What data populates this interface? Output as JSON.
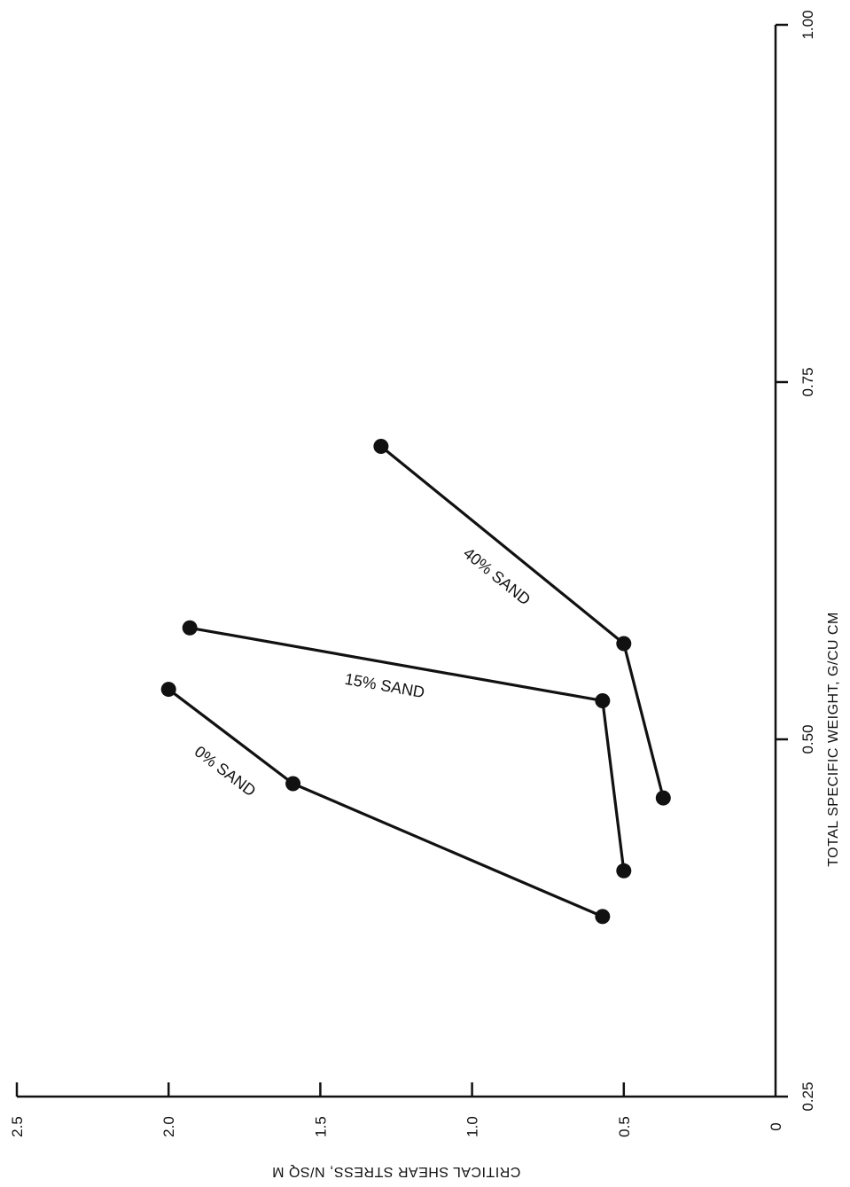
{
  "chart_data": {
    "type": "line",
    "title": "",
    "xlabel": "TOTAL SPECIFIC WEIGHT, G/CU CM",
    "ylabel": "CRITICAL SHEAR STRESS, N/SQ M",
    "xlim": [
      0.25,
      1.0
    ],
    "ylim": [
      0,
      2.5
    ],
    "x_ticks": [
      "0.25",
      "0.50",
      "0.75",
      "1.00"
    ],
    "y_ticks": [
      "0",
      "0.5",
      "1.0",
      "1.5",
      "2.0",
      "2.5"
    ],
    "grid": false,
    "legend": "none",
    "orientation": "rotated-90",
    "colors": {
      "ink": "#111111",
      "background": "#ffffff"
    },
    "series": [
      {
        "name": "0% SAND",
        "points": [
          {
            "x": 0.376,
            "y": 0.57
          },
          {
            "x": 0.469,
            "y": 1.59
          },
          {
            "x": 0.535,
            "y": 2.0
          }
        ]
      },
      {
        "name": "15% SAND",
        "points": [
          {
            "x": 0.408,
            "y": 0.5
          },
          {
            "x": 0.527,
            "y": 0.57
          },
          {
            "x": 0.578,
            "y": 1.93
          }
        ]
      },
      {
        "name": "40% SAND",
        "points": [
          {
            "x": 0.459,
            "y": 0.37
          },
          {
            "x": 0.567,
            "y": 0.5
          },
          {
            "x": 0.705,
            "y": 1.3
          }
        ]
      }
    ]
  }
}
